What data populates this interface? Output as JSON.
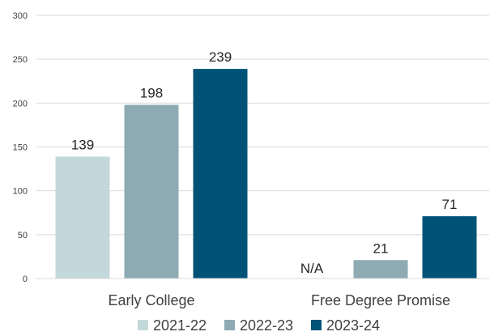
{
  "chart_data": {
    "type": "bar",
    "title": "",
    "xlabel": "",
    "ylabel": "",
    "categories": [
      "Early College",
      "Free Degree Promise"
    ],
    "series": [
      {
        "name": "2021-22",
        "color": "#c3d8db",
        "values": [
          139,
          null
        ],
        "labels": [
          "139",
          "N/A"
        ]
      },
      {
        "name": "2022-23",
        "color": "#8eabb3",
        "values": [
          198,
          21
        ],
        "labels": [
          "198",
          "21"
        ]
      },
      {
        "name": "2023-24",
        "color": "#005377",
        "values": [
          239,
          71
        ],
        "labels": [
          "239",
          "71"
        ]
      }
    ],
    "ylim": [
      0,
      300
    ],
    "yticks": [
      0,
      50,
      100,
      150,
      200,
      250,
      300
    ],
    "grid": true,
    "legend_position": "bottom"
  }
}
